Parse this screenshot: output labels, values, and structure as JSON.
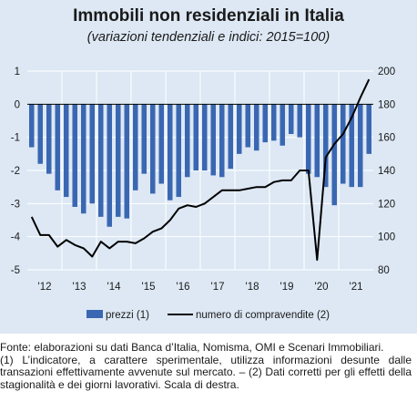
{
  "title": "Immobili non residenziali in Italia",
  "subtitle": "(variazioni tendenziali e indici: 2015=100)",
  "chart_data": {
    "type": "bar+line",
    "x_labels": [
      "'12",
      "'13",
      "'14",
      "'15",
      "'16",
      "'17",
      "'18",
      "'19",
      "'20",
      "'21"
    ],
    "quarters": [
      "2012Q1",
      "2012Q2",
      "2012Q3",
      "2012Q4",
      "2013Q1",
      "2013Q2",
      "2013Q3",
      "2013Q4",
      "2014Q1",
      "2014Q2",
      "2014Q3",
      "2014Q4",
      "2015Q1",
      "2015Q2",
      "2015Q3",
      "2015Q4",
      "2016Q1",
      "2016Q2",
      "2016Q3",
      "2016Q4",
      "2017Q1",
      "2017Q2",
      "2017Q3",
      "2017Q4",
      "2018Q1",
      "2018Q2",
      "2018Q3",
      "2018Q4",
      "2019Q1",
      "2019Q2",
      "2019Q3",
      "2019Q4",
      "2020Q1",
      "2020Q2",
      "2020Q3",
      "2020Q4",
      "2021Q1",
      "2021Q2",
      "2021Q3",
      "2021Q4"
    ],
    "left_axis": {
      "ticks": [
        "1",
        "0",
        "-1",
        "-2",
        "-3",
        "-4",
        "-5"
      ],
      "min": -5,
      "max": 1
    },
    "right_axis": {
      "ticks": [
        "200",
        "180",
        "160",
        "140",
        "120",
        "100",
        "80"
      ],
      "min": 80,
      "max": 200
    },
    "series": [
      {
        "name": "prezzi (1)",
        "type": "bar",
        "axis": "left",
        "color": "#3a67b2",
        "values": [
          -1.3,
          -1.8,
          -2.1,
          -2.6,
          -2.8,
          -3.1,
          -3.3,
          -3.0,
          -3.4,
          -3.7,
          -3.4,
          -3.45,
          -2.6,
          -2.1,
          -2.7,
          -2.4,
          -2.9,
          -2.8,
          -2.2,
          -2.0,
          -2.0,
          -2.15,
          -2.2,
          -1.95,
          -1.5,
          -1.3,
          -1.4,
          -1.15,
          -1.1,
          -1.25,
          -0.9,
          -1.0,
          -2.1,
          -2.2,
          -2.5,
          -3.05,
          -2.4,
          -2.5,
          -2.5,
          -1.5
        ]
      },
      {
        "name": "numero di compravendite (2)",
        "type": "line",
        "axis": "right",
        "color": "#000000",
        "values": [
          112,
          101,
          101,
          94,
          98,
          95,
          93,
          88,
          97,
          93,
          97,
          97,
          96,
          99,
          103,
          105,
          110,
          117,
          119,
          118,
          120,
          124,
          128,
          128,
          128,
          129,
          130,
          130,
          133,
          134,
          134,
          140,
          140,
          86,
          148,
          156,
          162,
          172,
          184,
          195
        ]
      }
    ]
  },
  "legend": {
    "bar_label": "prezzi (1)",
    "line_label": "numero di compravendite (2)"
  },
  "notes": {
    "source": "Fonte: elaborazioni su dati Banca d’Italia, Nomisma, OMI e Scenari Immobiliari.",
    "footnote": "(1) L’indicatore, a carattere sperimentale, utilizza informazioni desunte dalle transazioni effettivamente avvenute sul mercato. – (2) Dati corretti per gli effetti della stagionalità e dei giorni lavorativi. Scala di destra."
  }
}
